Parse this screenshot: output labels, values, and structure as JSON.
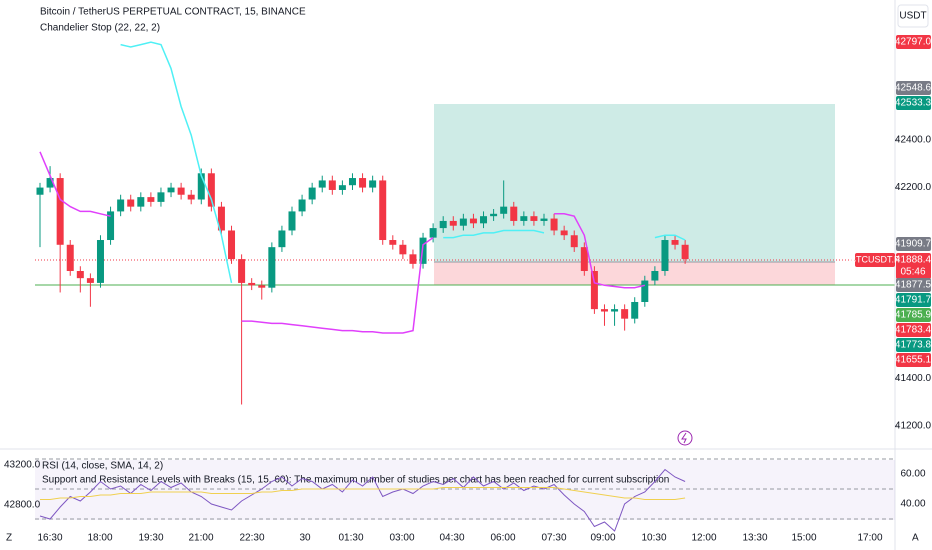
{
  "chart_data": [
    {
      "type": "candlestick",
      "title": "Bitcoin / TetherUS PERPETUAL CONTRACT, 15, BINANCE",
      "subtitle": "Chandelier Stop (22, 22, 2)",
      "currency": "USDT",
      "symbol_label": "BTCUSDT.P",
      "countdown": "05:46",
      "up_color": "#089981",
      "down_color": "#f23645",
      "open": [
        42170,
        42200,
        42240,
        41960,
        41850,
        41820,
        41800,
        41980,
        42100,
        42150,
        42120,
        42160,
        42140,
        42180,
        42200,
        42170,
        42150,
        42260,
        42120,
        42020,
        41900,
        41800,
        41790,
        41780,
        41950,
        42020,
        42100,
        42150,
        42200,
        42230,
        42190,
        42210,
        42240,
        42200,
        42230,
        41980,
        41960,
        41920,
        41880,
        41990,
        42030,
        42060,
        42040,
        42070,
        42050,
        42080,
        42090,
        42120,
        42060,
        42080,
        42060,
        42070,
        42020,
        42000,
        41950,
        41850,
        41690,
        41680,
        41690,
        41650,
        41720,
        41810,
        41850,
        41980,
        41960
      ],
      "high": [
        42220,
        42290,
        42260,
        41980,
        41870,
        41840,
        42000,
        42120,
        42170,
        42170,
        42180,
        42180,
        42200,
        42220,
        42220,
        42190,
        42280,
        42280,
        42140,
        42040,
        41920,
        41820,
        41810,
        41970,
        42040,
        42120,
        42170,
        42220,
        42250,
        42250,
        42230,
        42260,
        42260,
        42250,
        42250,
        42000,
        41980,
        41940,
        42010,
        42050,
        42080,
        42080,
        42090,
        42090,
        42100,
        42110,
        42230,
        42140,
        42100,
        42100,
        42090,
        42090,
        42040,
        42020,
        41970,
        41870,
        41710,
        41710,
        41710,
        41740,
        41830,
        41870,
        42000,
        42000,
        41980
      ],
      "low": [
        41950,
        42180,
        41760,
        41830,
        41760,
        41700,
        41780,
        41960,
        42080,
        42100,
        42100,
        42120,
        42120,
        42160,
        42150,
        42130,
        42130,
        42100,
        42000,
        41880,
        41290,
        41770,
        41730,
        41760,
        41930,
        42000,
        42080,
        42130,
        42180,
        42170,
        42170,
        42190,
        42180,
        42180,
        41960,
        41940,
        41900,
        41860,
        41860,
        41970,
        42010,
        42020,
        42020,
        42030,
        42030,
        42060,
        42070,
        42040,
        42040,
        42040,
        42040,
        42000,
        41980,
        41930,
        41830,
        41670,
        41620,
        41620,
        41600,
        41630,
        41700,
        41790,
        41830,
        41940,
        41880
      ],
      "close": [
        42200,
        42240,
        41960,
        41850,
        41820,
        41800,
        41980,
        42100,
        42150,
        42120,
        42160,
        42140,
        42180,
        42200,
        42170,
        42150,
        42260,
        42120,
        42020,
        41900,
        41800,
        41790,
        41780,
        41950,
        42020,
        42100,
        42150,
        42200,
        42230,
        42190,
        42210,
        42240,
        42200,
        42230,
        41980,
        41960,
        41920,
        41880,
        41990,
        42030,
        42060,
        42040,
        42070,
        42050,
        42080,
        42090,
        42120,
        42060,
        42080,
        42060,
        42070,
        42020,
        42000,
        41950,
        41850,
        41690,
        41680,
        41690,
        41650,
        41720,
        41810,
        41850,
        41980,
        41960,
        41900
      ],
      "lines": [
        {
          "color": "#e040fb",
          "values": [
            42350,
            42250,
            42150,
            42120,
            42100,
            42100,
            42090,
            42080,
            null,
            null,
            null,
            null,
            null,
            null,
            null,
            null,
            null,
            null,
            null,
            null,
            41640,
            41640,
            41635,
            41630,
            41630,
            41625,
            41620,
            41615,
            41610,
            41605,
            41600,
            41600,
            41595,
            41595,
            41590,
            41590,
            41590,
            41600,
            41960,
            41990,
            null,
            null,
            null,
            null,
            null,
            null,
            null,
            null,
            null,
            null,
            null,
            42090,
            42090,
            42080,
            42000,
            41800,
            41790,
            41785,
            41780,
            41780,
            41790,
            null,
            null,
            null,
            null
          ]
        },
        {
          "color": "#4ff0f5",
          "values": [
            null,
            null,
            null,
            null,
            null,
            null,
            null,
            null,
            42800,
            42790,
            42800,
            42810,
            42800,
            42700,
            42540,
            42420,
            42250,
            42150,
            42000,
            41800,
            null,
            null,
            null,
            null,
            null,
            null,
            null,
            null,
            null,
            null,
            null,
            null,
            null,
            null,
            null,
            null,
            null,
            null,
            null,
            null,
            41990,
            41990,
            42000,
            42000,
            42010,
            42010,
            42020,
            42020,
            42020,
            42020,
            42010,
            null,
            null,
            null,
            null,
            null,
            null,
            null,
            null,
            null,
            null,
            41990,
            42000,
            42000,
            41980
          ]
        }
      ],
      "ylim": [
        41099,
        42987
      ],
      "yticks": [
        {
          "value": 42400,
          "label": "42400.0"
        },
        {
          "value": 42200,
          "label": "42200.0"
        },
        {
          "value": 41400,
          "label": "41400.0"
        },
        {
          "value": 41200,
          "label": "41200.0"
        }
      ],
      "xticks": [
        "16:30",
        "18:00",
        "19:30",
        "21:00",
        "22:30",
        "30",
        "01:30",
        "03:00",
        "04:30",
        "06:00",
        "07:30",
        "09:00",
        "10:30",
        "12:00",
        "13:30",
        "15:00",
        "17:00"
      ],
      "price_labels": [
        {
          "text": "42797.0",
          "color": "#f23645"
        },
        {
          "text": "42548.6",
          "color": "#787b86"
        },
        {
          "text": "42533.3",
          "color": "#089981"
        },
        {
          "text": "41909.7",
          "color": "#787b86"
        },
        {
          "text": "41888.4",
          "color": "#f23645"
        },
        {
          "text": "41877.5",
          "color": "#787b86"
        },
        {
          "text": "41791.7",
          "color": "#089981"
        },
        {
          "text": "41785.9",
          "color": "#4caf50"
        },
        {
          "text": "41783.4",
          "color": "#f23645"
        },
        {
          "text": "41773.8",
          "color": "#089981"
        },
        {
          "text": "41655.1",
          "color": "#f23645"
        }
      ],
      "corners": [
        "Z",
        "A"
      ]
    },
    {
      "type": "line",
      "title": "RSI (14, close, SMA, 14, 2)",
      "note": "Support and Resistance Levels with Breaks (15, 15, 60): The maximum number of studies per chart has been reached for current subscription",
      "left_labels": [
        "43200.0",
        "42800.0"
      ],
      "series": [
        {
          "color": "#7e57c2",
          "values": [
            32,
            30,
            38,
            45,
            42,
            48,
            55,
            50,
            52,
            47,
            53,
            49,
            55,
            51,
            54,
            48,
            45,
            40,
            38,
            36,
            42,
            46,
            50,
            55,
            58,
            52,
            57,
            55,
            50,
            53,
            48,
            56,
            52,
            58,
            45,
            48,
            50,
            47,
            52,
            55,
            53,
            57,
            51,
            58,
            52,
            55,
            50,
            54,
            49,
            52,
            50,
            53,
            46,
            40,
            35,
            25,
            28,
            22,
            40,
            45,
            48,
            55,
            63,
            58,
            55
          ]
        },
        {
          "color": "#f0d050",
          "values": [
            43,
            43,
            44,
            44,
            45,
            45,
            46,
            46,
            47,
            47,
            47,
            48,
            48,
            48,
            48,
            48,
            48,
            47,
            47,
            47,
            47,
            47,
            48,
            48,
            49,
            49,
            50,
            50,
            50,
            50,
            50,
            50,
            50,
            50,
            50,
            50,
            50,
            50,
            50,
            50,
            51,
            51,
            51,
            51,
            51,
            51,
            51,
            51,
            51,
            51,
            51,
            51,
            50,
            49,
            48,
            47,
            46,
            45,
            44,
            44,
            43,
            43,
            43,
            43,
            44
          ]
        }
      ],
      "levels": [
        70,
        50,
        30
      ],
      "ylim": [
        21,
        73
      ],
      "yticks": [
        {
          "value": 60,
          "label": "60.00"
        },
        {
          "value": 40,
          "label": "40.00"
        }
      ]
    }
  ]
}
